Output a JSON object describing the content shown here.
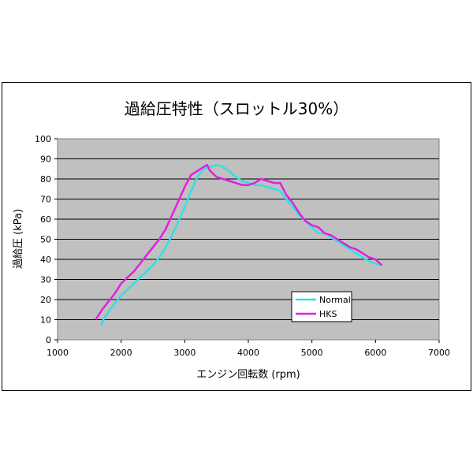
{
  "chart_data": {
    "type": "line",
    "title": "過給圧特性（スロットル30%）",
    "xlabel": "エンジン回転数 (rpm)",
    "ylabel": "過給圧 (kPa)",
    "xlim": [
      1000,
      7000
    ],
    "ylim": [
      0,
      100
    ],
    "x_ticks": [
      "1000",
      "2000",
      "3000",
      "4000",
      "5000",
      "6000",
      "7000"
    ],
    "y_ticks": [
      "0",
      "10",
      "20",
      "30",
      "40",
      "50",
      "60",
      "70",
      "80",
      "90",
      "100"
    ],
    "grid": true,
    "legend": "lower-right",
    "series": [
      {
        "name": "Normal",
        "color": "#33e0e0",
        "points": [
          [
            1690,
            7
          ],
          [
            1720,
            10
          ],
          [
            1800,
            14
          ],
          [
            1900,
            18
          ],
          [
            2000,
            22
          ],
          [
            2100,
            25
          ],
          [
            2200,
            28
          ],
          [
            2300,
            31
          ],
          [
            2400,
            34
          ],
          [
            2500,
            37
          ],
          [
            2600,
            41
          ],
          [
            2700,
            46
          ],
          [
            2800,
            52
          ],
          [
            2900,
            59
          ],
          [
            3000,
            66
          ],
          [
            3100,
            74
          ],
          [
            3200,
            81
          ],
          [
            3300,
            85
          ],
          [
            3400,
            86
          ],
          [
            3500,
            87
          ],
          [
            3600,
            86
          ],
          [
            3700,
            84
          ],
          [
            3800,
            81
          ],
          [
            3900,
            79
          ],
          [
            4000,
            78
          ],
          [
            4100,
            77
          ],
          [
            4200,
            77
          ],
          [
            4300,
            76
          ],
          [
            4400,
            75
          ],
          [
            4500,
            74
          ],
          [
            4600,
            70
          ],
          [
            4700,
            66
          ],
          [
            4800,
            62
          ],
          [
            4900,
            59
          ],
          [
            5000,
            56
          ],
          [
            5100,
            53
          ],
          [
            5200,
            53
          ],
          [
            5300,
            51
          ],
          [
            5400,
            49
          ],
          [
            5500,
            47
          ],
          [
            5600,
            45
          ],
          [
            5700,
            43
          ],
          [
            5800,
            41
          ],
          [
            5900,
            39
          ],
          [
            6000,
            38
          ],
          [
            6050,
            37
          ]
        ]
      },
      {
        "name": "HKS",
        "color": "#e020e0",
        "points": [
          [
            1600,
            10
          ],
          [
            1700,
            15
          ],
          [
            1800,
            19
          ],
          [
            1900,
            23
          ],
          [
            2000,
            28
          ],
          [
            2100,
            31
          ],
          [
            2200,
            34
          ],
          [
            2300,
            38
          ],
          [
            2400,
            42
          ],
          [
            2500,
            46
          ],
          [
            2600,
            50
          ],
          [
            2700,
            55
          ],
          [
            2800,
            62
          ],
          [
            2900,
            69
          ],
          [
            3000,
            76
          ],
          [
            3100,
            82
          ],
          [
            3200,
            84
          ],
          [
            3300,
            86
          ],
          [
            3350,
            87
          ],
          [
            3400,
            84
          ],
          [
            3500,
            81
          ],
          [
            3600,
            80
          ],
          [
            3700,
            79
          ],
          [
            3800,
            78
          ],
          [
            3900,
            77
          ],
          [
            4000,
            77
          ],
          [
            4100,
            78
          ],
          [
            4200,
            80
          ],
          [
            4300,
            79
          ],
          [
            4400,
            78
          ],
          [
            4500,
            78
          ],
          [
            4600,
            72
          ],
          [
            4700,
            68
          ],
          [
            4800,
            63
          ],
          [
            4900,
            59
          ],
          [
            5000,
            57
          ],
          [
            5100,
            56
          ],
          [
            5200,
            53
          ],
          [
            5300,
            52
          ],
          [
            5400,
            50
          ],
          [
            5500,
            48
          ],
          [
            5600,
            46
          ],
          [
            5700,
            45
          ],
          [
            5800,
            43
          ],
          [
            5900,
            41
          ],
          [
            6000,
            40
          ],
          [
            6100,
            37
          ]
        ]
      }
    ]
  }
}
